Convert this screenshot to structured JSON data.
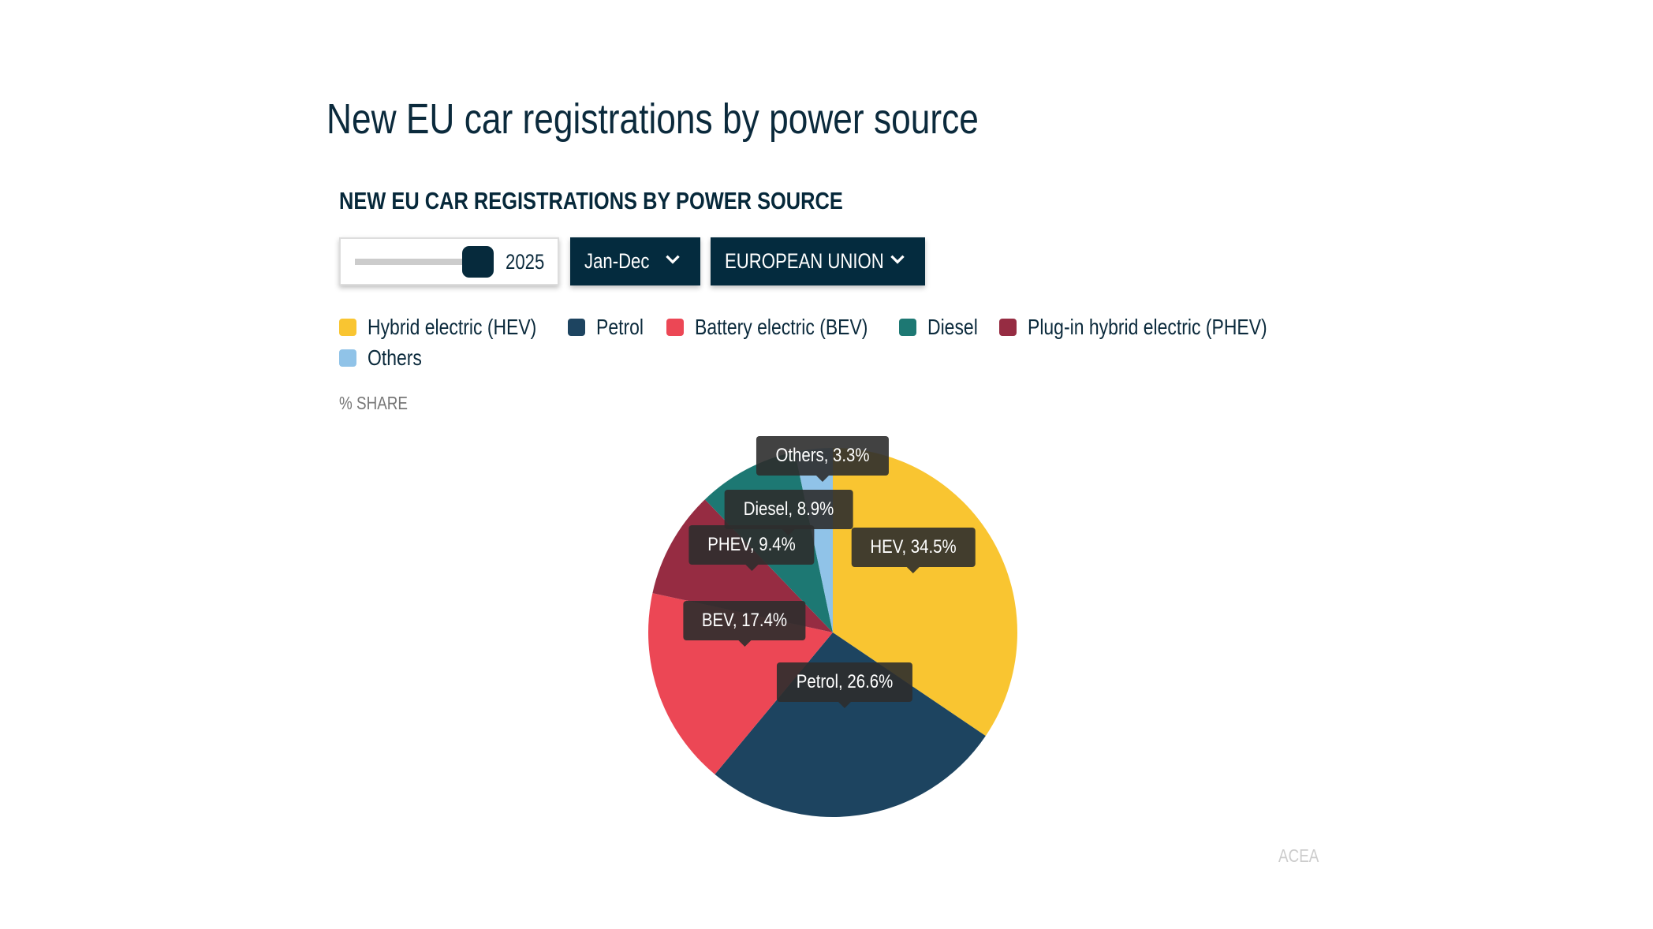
{
  "page_title": "New EU car registrations by power source",
  "chart_title": "NEW EU CAR REGISTRATIONS BY POWER SOURCE",
  "controls": {
    "year_slider_value": "2025",
    "period_dropdown": "Jan-Dec",
    "region_dropdown": "EUROPEAN UNION"
  },
  "unit_label": "% SHARE",
  "credit": "ACEA",
  "chart_data": {
    "type": "pie",
    "title": "NEW EU CAR REGISTRATIONS BY POWER SOURCE",
    "unit": "% share",
    "legend_position": "top-left",
    "slices": [
      {
        "name": "Hybrid electric (HEV)",
        "short": "HEV",
        "value": 34.5,
        "label": "HEV, 34.5%",
        "color": "#F9C531"
      },
      {
        "name": "Petrol",
        "short": "Petrol",
        "value": 26.6,
        "label": "Petrol, 26.6%",
        "color": "#1D4460"
      },
      {
        "name": "Battery electric (BEV)",
        "short": "BEV",
        "value": 17.4,
        "label": "BEV, 17.4%",
        "color": "#EC4755"
      },
      {
        "name": "Plug-in hybrid electric (PHEV)",
        "short": "PHEV",
        "value": 9.4,
        "label": "PHEV, 9.4%",
        "color": "#962C42"
      },
      {
        "name": "Diesel",
        "short": "Diesel",
        "value": 8.9,
        "label": "Diesel, 8.9%",
        "color": "#1D7873"
      },
      {
        "name": "Others",
        "short": "Others",
        "value": 3.3,
        "label": "Others, 3.3%",
        "color": "#90C3E8"
      }
    ],
    "legend_order": [
      0,
      1,
      2,
      4,
      3,
      5
    ]
  }
}
